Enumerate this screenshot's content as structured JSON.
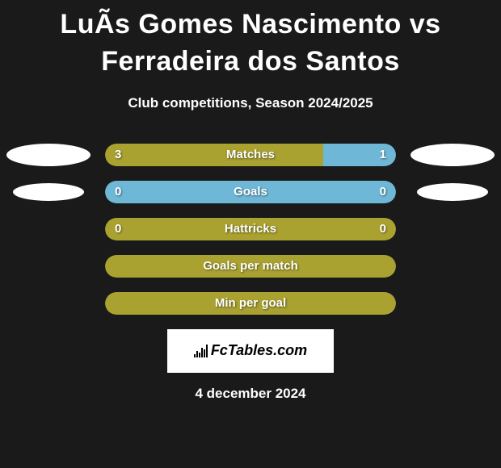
{
  "background_color": "#1a1a1a",
  "text_color": "#ffffff",
  "title": "LuÃ­s Gomes Nascimento vs Ferradeira dos Santos",
  "title_fontsize": 34,
  "subtitle": "Club competitions, Season 2024/2025",
  "subtitle_fontsize": 17,
  "oval_color": "#ffffff",
  "brand_box_bg": "#ffffff",
  "brand_text": "FcTables.com",
  "date": "4 december 2024",
  "colors": {
    "olive": "#a9a230",
    "blue": "#6fb7d6"
  },
  "rows": [
    {
      "name": "matches",
      "label": "Matches",
      "left_value": "3",
      "right_value": "1",
      "left_pct": 75,
      "right_pct": 25,
      "left_color": "#a9a230",
      "right_color": "#6fb7d6",
      "has_ovals": true,
      "oval_size": "large"
    },
    {
      "name": "goals",
      "label": "Goals",
      "left_value": "0",
      "right_value": "0",
      "left_pct": 100,
      "right_pct": 0,
      "left_color": "#6fb7d6",
      "right_color": "#6fb7d6",
      "has_ovals": true,
      "oval_size": "small"
    },
    {
      "name": "hattricks",
      "label": "Hattricks",
      "left_value": "0",
      "right_value": "0",
      "left_pct": 100,
      "right_pct": 0,
      "left_color": "#a9a230",
      "right_color": "#a9a230",
      "has_ovals": false
    },
    {
      "name": "goals-per-match",
      "label": "Goals per match",
      "left_value": "",
      "right_value": "",
      "left_pct": 100,
      "right_pct": 0,
      "left_color": "#a9a230",
      "right_color": "#a9a230",
      "has_ovals": false
    },
    {
      "name": "min-per-goal",
      "label": "Min per goal",
      "left_value": "",
      "right_value": "",
      "left_pct": 100,
      "right_pct": 0,
      "left_color": "#a9a230",
      "right_color": "#a9a230",
      "has_ovals": false
    }
  ]
}
